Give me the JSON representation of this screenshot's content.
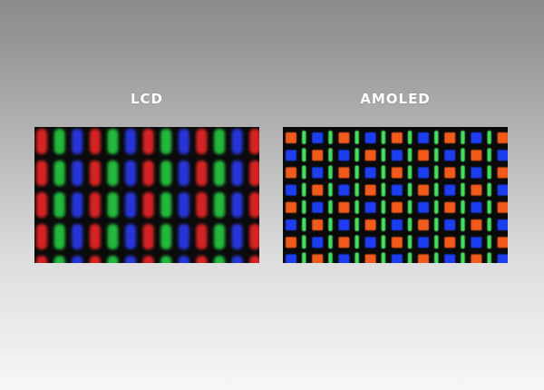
{
  "labels": {
    "left": "LCD",
    "right": "AMOLED"
  },
  "colors": {
    "lcd_red": "#d52222",
    "lcd_green": "#22b83a",
    "lcd_blue": "#2535d8",
    "amoled_red": "#f25a1c",
    "amoled_green": "#45e05e",
    "amoled_blue": "#1c3cf0"
  },
  "images": {
    "left_panel": "lcd-subpixel-macro",
    "right_panel": "amoled-pentile-subpixel-macro"
  }
}
